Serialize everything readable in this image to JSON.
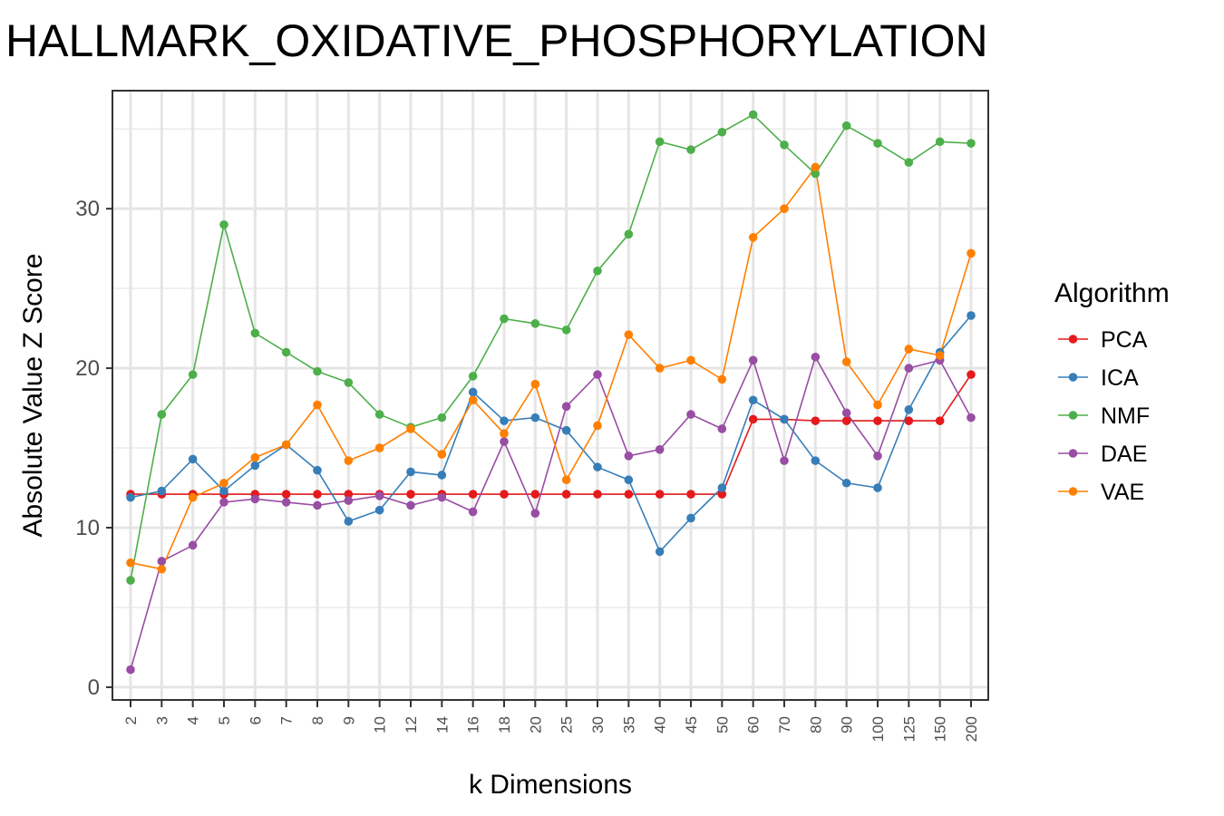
{
  "chart_data": {
    "type": "line",
    "title": "HALLMARK_OXIDATIVE_PHOSPHORYLATION",
    "xlabel": "k Dimensions",
    "ylabel": "Absolute Value Z Score",
    "categories": [
      "2",
      "3",
      "4",
      "5",
      "6",
      "7",
      "8",
      "9",
      "10",
      "12",
      "14",
      "16",
      "18",
      "20",
      "25",
      "30",
      "35",
      "40",
      "45",
      "50",
      "60",
      "70",
      "80",
      "90",
      "100",
      "125",
      "150",
      "200"
    ],
    "y_ticks": [
      0,
      10,
      20,
      30
    ],
    "y_tick_labels": [
      "0",
      "10",
      "20",
      "30"
    ],
    "ylim": [
      -0.8,
      37.4
    ],
    "grid": true,
    "legend": {
      "title": "Algorithm",
      "position": "right"
    },
    "series": [
      {
        "name": "PCA",
        "color": "#e41a1c",
        "values": [
          12.1,
          12.1,
          12.1,
          12.1,
          12.1,
          12.1,
          12.1,
          12.1,
          12.1,
          12.1,
          12.1,
          12.1,
          12.1,
          12.1,
          12.1,
          12.1,
          12.1,
          12.1,
          12.1,
          12.1,
          16.8,
          16.8,
          16.7,
          16.7,
          16.7,
          16.7,
          16.7,
          19.6
        ]
      },
      {
        "name": "ICA",
        "color": "#377eb8",
        "values": [
          11.9,
          12.3,
          14.3,
          12.3,
          13.9,
          15.2,
          13.6,
          10.4,
          11.1,
          13.5,
          13.3,
          18.5,
          16.7,
          16.9,
          16.1,
          13.8,
          13.0,
          8.5,
          10.6,
          12.5,
          18.0,
          16.8,
          14.2,
          12.8,
          12.5,
          17.4,
          21.0,
          23.3
        ]
      },
      {
        "name": "NMF",
        "color": "#4daf4a",
        "values": [
          6.7,
          17.1,
          19.6,
          29.0,
          22.2,
          21.0,
          19.8,
          19.1,
          17.1,
          16.3,
          16.9,
          19.5,
          23.1,
          22.8,
          22.4,
          26.1,
          28.4,
          34.2,
          33.7,
          34.8,
          35.9,
          34.0,
          32.2,
          35.2,
          34.1,
          32.9,
          34.2,
          34.1
        ]
      },
      {
        "name": "DAE",
        "color": "#984ea3",
        "values": [
          1.1,
          7.9,
          8.9,
          11.6,
          11.8,
          11.6,
          11.4,
          11.7,
          12.0,
          11.4,
          11.9,
          11.0,
          15.4,
          10.9,
          17.6,
          19.6,
          14.5,
          14.9,
          17.1,
          16.2,
          20.5,
          14.2,
          20.7,
          17.2,
          14.5,
          20.0,
          20.5,
          16.9
        ]
      },
      {
        "name": "VAE",
        "color": "#ff7f00",
        "values": [
          7.8,
          7.4,
          11.9,
          12.8,
          14.4,
          15.2,
          17.7,
          14.2,
          15.0,
          16.2,
          14.6,
          18.0,
          15.9,
          19.0,
          13.0,
          16.4,
          22.1,
          20.0,
          20.5,
          19.3,
          28.2,
          30.0,
          32.6,
          20.4,
          17.7,
          21.2,
          20.8,
          27.2
        ]
      }
    ]
  }
}
